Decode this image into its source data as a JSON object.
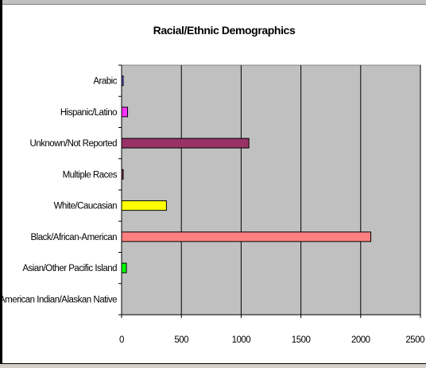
{
  "chart_data": {
    "type": "bar",
    "orientation": "horizontal",
    "title": "Racial/Ethnic Demographics",
    "xlabel": "",
    "ylabel": "",
    "xlim": [
      0,
      2500
    ],
    "ticks": [
      0,
      500,
      1000,
      1500,
      2000,
      2500
    ],
    "grid": true,
    "legend": "none",
    "plot_background": "#c0c0c0",
    "categories": [
      "Arabic",
      "Hispanic/Latino",
      "Unknown/Not Reported",
      "Multiple Races",
      "White/Caucasian",
      "Black/African-American",
      "Asian/Other Pacific Island",
      "American Indian/Alaskan Native"
    ],
    "values": [
      10,
      50,
      1065,
      10,
      375,
      2085,
      40,
      0
    ],
    "colors": [
      "#6666ff",
      "#ff33ff",
      "#993366",
      "#993366",
      "#ffff00",
      "#ff8080",
      "#00ff00",
      "#c0c0c0"
    ]
  }
}
